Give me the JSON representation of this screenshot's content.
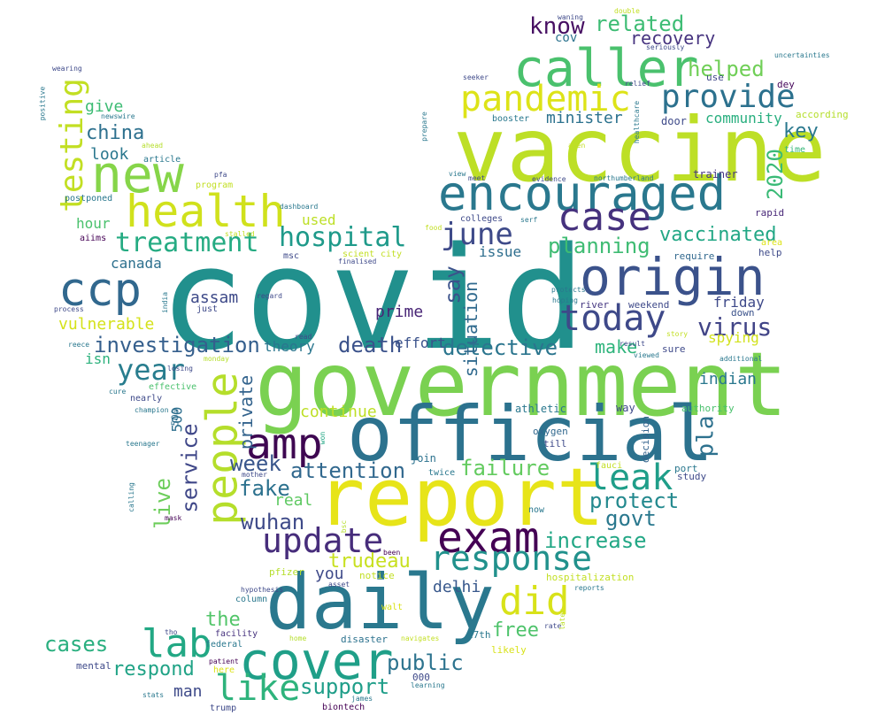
{
  "words": [
    {
      "text": "covid",
      "color": "#21908d",
      "vertical": false
    },
    {
      "text": "vaccine",
      "color": "#bddf26",
      "vertical": false
    },
    {
      "text": "government",
      "color": "#7ad151",
      "vertical": false
    },
    {
      "text": "official",
      "color": "#2c728e",
      "vertical": false
    },
    {
      "text": "report",
      "color": "#e7e419",
      "vertical": false
    },
    {
      "text": "daily",
      "color": "#2a788e",
      "vertical": false
    },
    {
      "text": "caller",
      "color": "#4ac16d",
      "vertical": false
    },
    {
      "text": "encouraged",
      "color": "#2a788e",
      "vertical": false
    },
    {
      "text": "origin",
      "color": "#3b528b",
      "vertical": false
    },
    {
      "text": "new",
      "color": "#86d549",
      "vertical": false
    },
    {
      "text": "health",
      "color": "#d0e11c",
      "vertical": false
    },
    {
      "text": "cover",
      "color": "#1f9f88",
      "vertical": false
    },
    {
      "text": "exam",
      "color": "#440154",
      "vertical": false
    },
    {
      "text": "amp",
      "color": "#3e0751",
      "vertical": false
    },
    {
      "text": "people",
      "color": "#b5de2b",
      "vertical": true
    },
    {
      "text": "case",
      "color": "#46327e",
      "vertical": false
    },
    {
      "text": "ccp",
      "color": "#31688e",
      "vertical": false
    },
    {
      "text": "pandemic",
      "color": "#dde318",
      "vertical": false
    },
    {
      "text": "today",
      "color": "#3e4989",
      "vertical": false
    },
    {
      "text": "response",
      "color": "#21918c",
      "vertical": false
    },
    {
      "text": "update",
      "color": "#472d7b",
      "vertical": false
    },
    {
      "text": "provide",
      "color": "#2c718e",
      "vertical": false
    },
    {
      "text": "leak",
      "color": "#1f9e89",
      "vertical": false
    },
    {
      "text": "lab",
      "color": "#22a884",
      "vertical": false
    },
    {
      "text": "like",
      "color": "#2eb37c",
      "vertical": false
    },
    {
      "text": "did",
      "color": "#d8e219",
      "vertical": false
    },
    {
      "text": "testing",
      "color": "#c2df23",
      "vertical": true
    },
    {
      "text": "treatment",
      "color": "#25ab82",
      "vertical": false
    },
    {
      "text": "hospital",
      "color": "#1f9a8a",
      "vertical": false
    },
    {
      "text": "year",
      "color": "#287d8e",
      "vertical": false
    },
    {
      "text": "june",
      "color": "#3e4a89",
      "vertical": false
    },
    {
      "text": "virus",
      "color": "#414487",
      "vertical": false
    },
    {
      "text": "investigation",
      "color": "#355f8d",
      "vertical": false
    },
    {
      "text": "death",
      "color": "#3b528b",
      "vertical": false
    },
    {
      "text": "detective",
      "color": "#2b758e",
      "vertical": false
    },
    {
      "text": "service",
      "color": "#3f4788",
      "vertical": true
    },
    {
      "text": "attention",
      "color": "#31688e",
      "vertical": false
    },
    {
      "text": "wuhan",
      "color": "#3e4a89",
      "vertical": false
    },
    {
      "text": "know",
      "color": "#471063",
      "vertical": false
    },
    {
      "text": "related",
      "color": "#3dbc74",
      "vertical": false
    },
    {
      "text": "recovery",
      "color": "#46337f",
      "vertical": false
    },
    {
      "text": "helped",
      "color": "#70cf57",
      "vertical": false
    },
    {
      "text": "china",
      "color": "#2d708e",
      "vertical": false
    },
    {
      "text": "key",
      "color": "#2a788e",
      "vertical": false
    },
    {
      "text": "2020",
      "color": "#3aba76",
      "vertical": true
    },
    {
      "text": "vaccinated",
      "color": "#22a785",
      "vertical": false
    },
    {
      "text": "planning",
      "color": "#3fbc73",
      "vertical": false
    },
    {
      "text": "say",
      "color": "#3b528b",
      "vertical": true
    },
    {
      "text": "situation",
      "color": "#306a8e",
      "vertical": true
    },
    {
      "text": "failure",
      "color": "#63cb5f",
      "vertical": false
    },
    {
      "text": "protect",
      "color": "#23898e",
      "vertical": false
    },
    {
      "text": "govt",
      "color": "#2a788e",
      "vertical": false
    },
    {
      "text": "increase",
      "color": "#22a785",
      "vertical": false
    },
    {
      "text": "trudeau",
      "color": "#c8e020",
      "vertical": false
    },
    {
      "text": "public",
      "color": "#2c738e",
      "vertical": false
    },
    {
      "text": "support",
      "color": "#1f9e89",
      "vertical": false
    },
    {
      "text": "cases",
      "color": "#29af7f",
      "vertical": false
    },
    {
      "text": "respond",
      "color": "#20a386",
      "vertical": false
    },
    {
      "text": "the",
      "color": "#52c569",
      "vertical": false
    },
    {
      "text": "free",
      "color": "#4ec36b",
      "vertical": false
    },
    {
      "text": "fake",
      "color": "#2c718e",
      "vertical": false
    },
    {
      "text": "week",
      "color": "#39568c",
      "vertical": false
    },
    {
      "text": "live",
      "color": "#6ccd5a",
      "vertical": true
    },
    {
      "text": "private",
      "color": "#33638d",
      "vertical": true
    },
    {
      "text": "theory",
      "color": "#2a768e",
      "vertical": false
    },
    {
      "text": "make",
      "color": "#2fb47c",
      "vertical": false
    },
    {
      "text": "indian",
      "color": "#2a788e",
      "vertical": false
    },
    {
      "text": "spying",
      "color": "#d2e21b",
      "vertical": false
    },
    {
      "text": "pla",
      "color": "#2d718e",
      "vertical": true
    },
    {
      "text": "friday",
      "color": "#3e4989",
      "vertical": false
    },
    {
      "text": "real",
      "color": "#5ec962",
      "vertical": false
    },
    {
      "text": "continue",
      "color": "#bddf26",
      "vertical": false
    },
    {
      "text": "prime",
      "color": "#482576",
      "vertical": false
    },
    {
      "text": "effort",
      "color": "#3b528b",
      "vertical": false
    },
    {
      "text": "issue",
      "color": "#2e6e8e",
      "vertical": false
    },
    {
      "text": "canada",
      "color": "#2d708e",
      "vertical": false
    },
    {
      "text": "assam",
      "color": "#3e4a89",
      "vertical": false
    },
    {
      "text": "vulnerable",
      "color": "#d5e21a",
      "vertical": false
    },
    {
      "text": "isn",
      "color": "#2db27d",
      "vertical": false
    },
    {
      "text": "500",
      "color": "#2e6f8e",
      "vertical": true
    },
    {
      "text": "hour",
      "color": "#4ac16d",
      "vertical": false
    },
    {
      "text": "look",
      "color": "#2a778e",
      "vertical": false
    },
    {
      "text": "give",
      "color": "#3dbc74",
      "vertical": false
    },
    {
      "text": "minister",
      "color": "#2c728e",
      "vertical": false
    },
    {
      "text": "community",
      "color": "#29af7f",
      "vertical": false
    },
    {
      "text": "used",
      "color": "#bddf26",
      "vertical": false
    },
    {
      "text": "delhi",
      "color": "#38588c",
      "vertical": false
    },
    {
      "text": "you",
      "color": "#3e4a89",
      "vertical": false
    },
    {
      "text": "man",
      "color": "#3e4a89",
      "vertical": false
    },
    {
      "text": "cov",
      "color": "#2c738e",
      "vertical": false
    },
    {
      "text": "door",
      "color": "#3e4a89",
      "vertical": false
    },
    {
      "text": "trainer",
      "color": "#453581",
      "vertical": false
    },
    {
      "text": "rapid",
      "color": "#482878",
      "vertical": false
    },
    {
      "text": "dey",
      "color": "#46075a",
      "vertical": false
    },
    {
      "text": "use",
      "color": "#3f4788",
      "vertical": false
    },
    {
      "text": "according",
      "color": "#b5de2b",
      "vertical": false
    },
    {
      "text": "time",
      "color": "#37b878",
      "vertical": false
    },
    {
      "text": "area",
      "color": "#dde318",
      "vertical": false
    },
    {
      "text": "help",
      "color": "#3e4a89",
      "vertical": false
    },
    {
      "text": "require",
      "color": "#31688e",
      "vertical": false
    },
    {
      "text": "down",
      "color": "#3b528b",
      "vertical": false
    },
    {
      "text": "weekend",
      "color": "#3e4989",
      "vertical": false
    },
    {
      "text": "river",
      "color": "#453781",
      "vertical": false
    },
    {
      "text": "sure",
      "color": "#3e4989",
      "vertical": false
    },
    {
      "text": "way",
      "color": "#3e4989",
      "vertical": false
    },
    {
      "text": "athletic",
      "color": "#2a788e",
      "vertical": false
    },
    {
      "text": "authority",
      "color": "#4ac16d",
      "vertical": false
    },
    {
      "text": "decision",
      "color": "#33638d",
      "vertical": true
    },
    {
      "text": "oxygen",
      "color": "#31688e",
      "vertical": false
    },
    {
      "text": "till",
      "color": "#3e4a89",
      "vertical": false
    },
    {
      "text": "port",
      "color": "#2a788e",
      "vertical": false
    },
    {
      "text": "study",
      "color": "#3e4989",
      "vertical": false
    },
    {
      "text": "now",
      "color": "#2a788e",
      "vertical": false
    },
    {
      "text": "join",
      "color": "#2c728e",
      "vertical": false
    },
    {
      "text": "twice",
      "color": "#2a788e",
      "vertical": false
    },
    {
      "text": "500",
      "color": "#2e6f8e",
      "vertical": true
    },
    {
      "text": "hospitalization",
      "color": "#c2df23",
      "vertical": false
    },
    {
      "text": "likely",
      "color": "#d8e219",
      "vertical": false
    },
    {
      "text": "27th",
      "color": "#2a788e",
      "vertical": false
    },
    {
      "text": "disaster",
      "color": "#2c728e",
      "vertical": false
    },
    {
      "text": "000",
      "color": "#3e4989",
      "vertical": false
    },
    {
      "text": "learning",
      "color": "#2a788e",
      "vertical": false
    },
    {
      "text": "facility",
      "color": "#46327e",
      "vertical": false
    },
    {
      "text": "federal",
      "color": "#2a788e",
      "vertical": false
    },
    {
      "text": "column",
      "color": "#2a788e",
      "vertical": false
    },
    {
      "text": "mental",
      "color": "#3e4989",
      "vertical": false
    },
    {
      "text": "here",
      "color": "#dde318",
      "vertical": false
    },
    {
      "text": "biontech",
      "color": "#440154",
      "vertical": false
    },
    {
      "text": "trump",
      "color": "#3e4989",
      "vertical": false
    },
    {
      "text": "pfizer",
      "color": "#b5de2b",
      "vertical": false
    },
    {
      "text": "notice",
      "color": "#c2df23",
      "vertical": false
    },
    {
      "text": "walt",
      "color": "#d8e219",
      "vertical": false
    },
    {
      "text": "hypothesis",
      "color": "#3e4989",
      "vertical": false
    },
    {
      "text": "asset",
      "color": "#3e4989",
      "vertical": false
    },
    {
      "text": "navigates",
      "color": "#c2df23",
      "vertical": false
    },
    {
      "text": "reports",
      "color": "#2a788e",
      "vertical": false
    },
    {
      "text": "rate",
      "color": "#3e4989",
      "vertical": false
    },
    {
      "text": "later",
      "color": "#bddf26",
      "vertical": true
    },
    {
      "text": "patient",
      "color": "#440154",
      "vertical": false
    },
    {
      "text": "stats",
      "color": "#2a788e",
      "vertical": false
    },
    {
      "text": "james",
      "color": "#2a788e",
      "vertical": false
    },
    {
      "text": "tho",
      "color": "#3e4989",
      "vertical": false
    },
    {
      "text": "home",
      "color": "#b5de2b",
      "vertical": false
    },
    {
      "text": "been",
      "color": "#440154",
      "vertical": false
    },
    {
      "text": "bsc",
      "color": "#b5de2b",
      "vertical": true
    },
    {
      "text": "mother",
      "color": "#3e4989",
      "vertical": false
    },
    {
      "text": "won",
      "color": "#22a785",
      "vertical": true
    },
    {
      "text": "mask",
      "color": "#440154",
      "vertical": false
    },
    {
      "text": "calling",
      "color": "#2a788e",
      "vertical": true
    },
    {
      "text": "teenager",
      "color": "#2a788e",
      "vertical": false
    },
    {
      "text": "champion",
      "color": "#2a788e",
      "vertical": false
    },
    {
      "text": "cure",
      "color": "#2a788e",
      "vertical": false
    },
    {
      "text": "nearly",
      "color": "#3e4989",
      "vertical": false
    },
    {
      "text": "effective",
      "color": "#4ac16d",
      "vertical": false
    },
    {
      "text": "losing",
      "color": "#3e4989",
      "vertical": false
    },
    {
      "text": "monday",
      "color": "#b5de2b",
      "vertical": false
    },
    {
      "text": "reece",
      "color": "#2a788e",
      "vertical": false
    },
    {
      "text": "read",
      "color": "#3e4989",
      "vertical": false
    },
    {
      "text": "process",
      "color": "#3e4989",
      "vertical": false
    },
    {
      "text": "just",
      "color": "#3e4989",
      "vertical": false
    },
    {
      "text": "regard",
      "color": "#3e4989",
      "vertical": false
    },
    {
      "text": "india",
      "color": "#2a788e",
      "vertical": true
    },
    {
      "text": "aiims",
      "color": "#440154",
      "vertical": false
    },
    {
      "text": "postponed",
      "color": "#2a788e",
      "vertical": false
    },
    {
      "text": "stalled",
      "color": "#c2df23",
      "vertical": false
    },
    {
      "text": "msc",
      "color": "#3e4989",
      "vertical": false
    },
    {
      "text": "scient",
      "color": "#c2df23",
      "vertical": false
    },
    {
      "text": "city",
      "color": "#c2df23",
      "vertical": false
    },
    {
      "text": "finalised",
      "color": "#3e4989",
      "vertical": false
    },
    {
      "text": "dashboard",
      "color": "#2a788e",
      "vertical": false
    },
    {
      "text": "pfa",
      "color": "#3e4989",
      "vertical": false
    },
    {
      "text": "program",
      "color": "#c2df23",
      "vertical": false
    },
    {
      "text": "article",
      "color": "#2a788e",
      "vertical": false
    },
    {
      "text": "ahead",
      "color": "#b5de2b",
      "vertical": false
    },
    {
      "text": "newswire",
      "color": "#2a788e",
      "vertical": false
    },
    {
      "text": "positive",
      "color": "#2a788e",
      "vertical": true
    },
    {
      "text": "wearing",
      "color": "#3e4989",
      "vertical": false
    },
    {
      "text": "food",
      "color": "#c2df23",
      "vertical": false
    },
    {
      "text": "colleges",
      "color": "#3e4989",
      "vertical": false
    },
    {
      "text": "serf",
      "color": "#2a788e",
      "vertical": false
    },
    {
      "text": "view",
      "color": "#2a788e",
      "vertical": false
    },
    {
      "text": "meet",
      "color": "#3e4989",
      "vertical": false
    },
    {
      "text": "prepare",
      "color": "#2a788e",
      "vertical": true
    },
    {
      "text": "evidence",
      "color": "#3e4989",
      "vertical": false
    },
    {
      "text": "northumberland",
      "color": "#2a788e",
      "vertical": false
    },
    {
      "text": "aren",
      "color": "#c2df23",
      "vertical": false
    },
    {
      "text": "booster",
      "color": "#2a788e",
      "vertical": false
    },
    {
      "text": "seeker",
      "color": "#3e4989",
      "vertical": false
    },
    {
      "text": "healthcare",
      "color": "#2a788e",
      "vertical": true
    },
    {
      "text": "seriously",
      "color": "#3e4989",
      "vertical": false
    },
    {
      "text": "waning",
      "color": "#3e4989",
      "vertical": false
    },
    {
      "text": "double",
      "color": "#c2df23",
      "vertical": false
    },
    {
      "text": "uncertainties",
      "color": "#2a788e",
      "vertical": false
    },
    {
      "text": "relief",
      "color": "#3e4989",
      "vertical": false
    },
    {
      "text": "protects",
      "color": "#2a788e",
      "vertical": false
    },
    {
      "text": "hoping",
      "color": "#2a788e",
      "vertical": false
    },
    {
      "text": "story",
      "color": "#c2df23",
      "vertical": false
    },
    {
      "text": "result",
      "color": "#3e4989",
      "vertical": false
    },
    {
      "text": "viewed",
      "color": "#2a788e",
      "vertical": false
    },
    {
      "text": "additional",
      "color": "#2a788e",
      "vertical": false
    },
    {
      "text": "fauci",
      "color": "#c2df23",
      "vertical": false
    }
  ]
}
